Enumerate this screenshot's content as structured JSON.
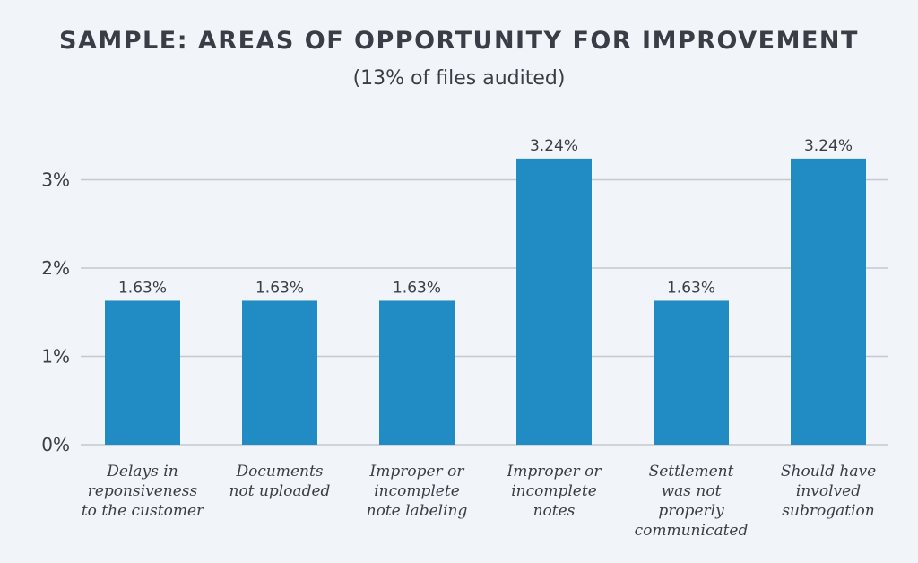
{
  "chart": {
    "title": "SAMPLE: AREAS OF OPPORTUNITY FOR IMPROVEMENT",
    "subtitle": "(13% of files audited)"
  },
  "chart_data": {
    "type": "bar",
    "title": "SAMPLE: AREAS OF OPPORTUNITY FOR IMPROVEMENT",
    "subtitle": "(13% of files audited)",
    "xlabel": "",
    "ylabel": "",
    "ylim": [
      0,
      3.5
    ],
    "grid": true,
    "bar_color": "#218bc3",
    "grid_color": "#c4c9cf",
    "categories": [
      [
        "Delays in",
        "reponsiveness",
        "to the customer"
      ],
      [
        "Documents",
        "not uploaded"
      ],
      [
        "Improper or",
        "incomplete",
        "note labeling"
      ],
      [
        "Improper or",
        "incomplete",
        "notes"
      ],
      [
        "Settlement",
        "was not",
        "properly",
        "communicated"
      ],
      [
        "Should have",
        "involved",
        "subrogation"
      ]
    ],
    "values": [
      1.63,
      1.63,
      1.63,
      3.24,
      1.63,
      3.24
    ],
    "data_labels": [
      "1.63%",
      "1.63%",
      "1.63%",
      "3.24%",
      "1.63%",
      "3.24%"
    ],
    "y_ticks": [
      0,
      1,
      2,
      3
    ],
    "y_tick_labels": [
      "0%",
      "1%",
      "2%",
      "3%"
    ]
  }
}
